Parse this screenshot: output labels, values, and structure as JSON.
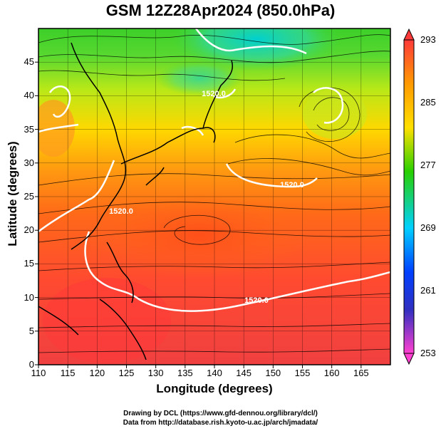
{
  "title": "GSM 12Z28Apr2024 (850.0hPa)",
  "chart_data": {
    "type": "heatmap",
    "map_region": "Northwest Pacific / East Asia",
    "variable_colored": "temperature",
    "xlabel": "Longitude (degrees)",
    "ylabel": "Latitude  (degrees)",
    "xlim": [
      110,
      170
    ],
    "ylim": [
      0,
      50
    ],
    "x_ticks": [
      "110",
      "115",
      "120",
      "125",
      "130",
      "135",
      "140",
      "145",
      "150",
      "155",
      "160",
      "165"
    ],
    "y_ticks": [
      "0",
      "5",
      "10",
      "15",
      "20",
      "25",
      "30",
      "35",
      "40",
      "45"
    ],
    "colorbar": {
      "range": [
        253,
        293
      ],
      "labels": [
        "293",
        "285",
        "277",
        "269",
        "261",
        "253"
      ],
      "colors": [
        "#ff3a3a",
        "#ff9a00",
        "#ffe000",
        "#28d000",
        "#00d0ff",
        "#0040ff",
        "#3030c0",
        "#ff40d0"
      ]
    },
    "contour_labels": [
      "1520.0",
      "1520.0",
      "1520.0",
      "1520.0"
    ],
    "streamlines": true,
    "coastlines": true
  },
  "credits": {
    "line1": "Drawing by DCL (https://www.gfd-dennou.org/library/dcl/)",
    "line2": "Data from http://database.rish.kyoto-u.ac.jp/arch/jmadata/"
  }
}
